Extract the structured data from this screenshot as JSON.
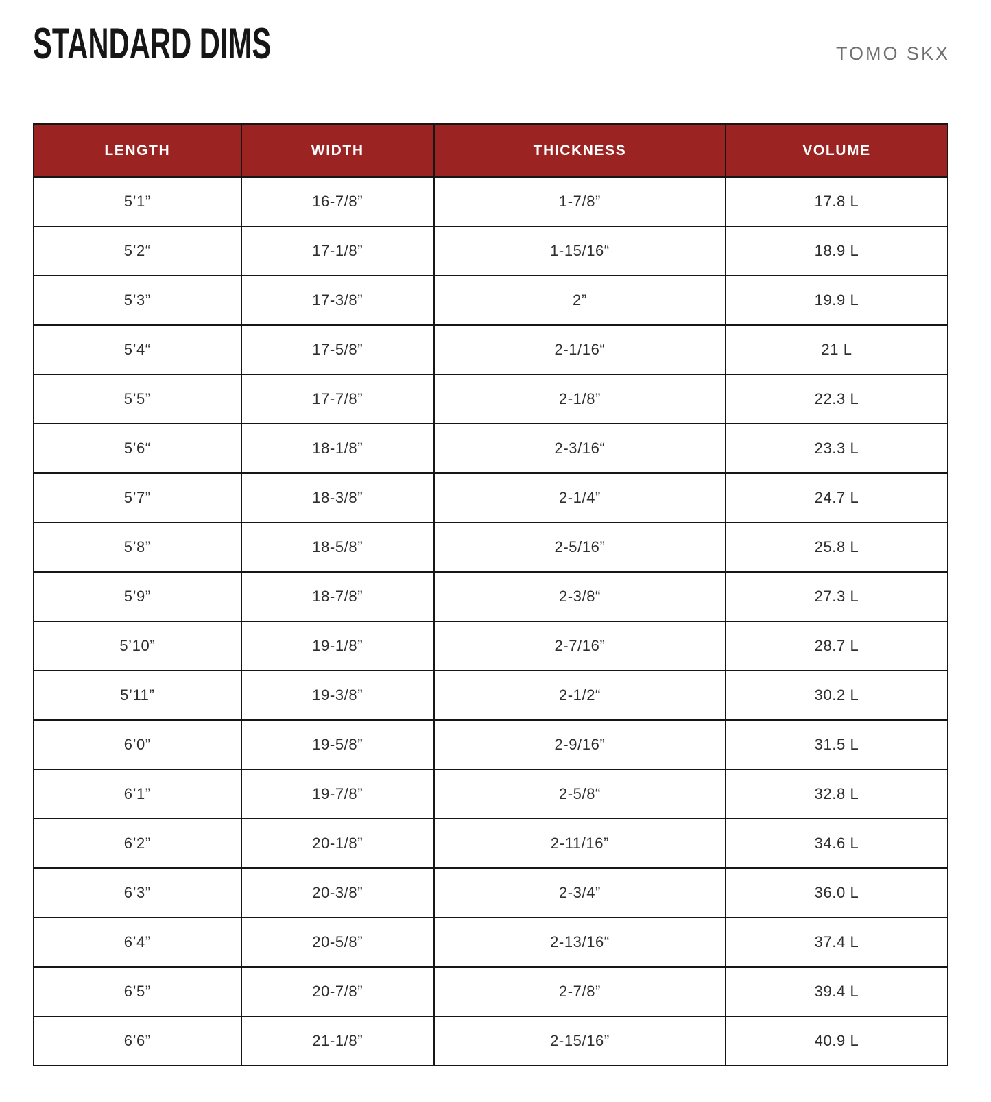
{
  "page": {
    "title": "STANDARD DIMS",
    "brand": "TOMO SKX"
  },
  "colors": {
    "header_bg": "#9b2423",
    "header_text": "#ffffff",
    "border": "#161616",
    "cell_text": "#2e2e30",
    "title_text": "#161616",
    "brand_text": "#6f6f6f"
  },
  "table": {
    "columns": [
      "LENGTH",
      "WIDTH",
      "THICKNESS",
      "VOLUME"
    ],
    "rows": [
      [
        "5’1”",
        "16-7/8”",
        "1-7/8”",
        "17.8 L"
      ],
      [
        "5’2“",
        "17-1/8”",
        "1-15/16“",
        "18.9 L"
      ],
      [
        "5’3”",
        "17-3/8”",
        "2”",
        "19.9 L"
      ],
      [
        "5’4“",
        "17-5/8”",
        "2-1/16“",
        "21 L"
      ],
      [
        "5’5”",
        "17-7/8”",
        "2-1/8”",
        "22.3 L"
      ],
      [
        "5’6“",
        "18-1/8”",
        "2-3/16“",
        "23.3 L"
      ],
      [
        "5’7”",
        "18-3/8”",
        "2-1/4”",
        "24.7 L"
      ],
      [
        "5’8”",
        "18-5/8”",
        "2-5/16”",
        "25.8 L"
      ],
      [
        "5’9”",
        "18-7/8”",
        "2-3/8“",
        "27.3 L"
      ],
      [
        "5’10”",
        "19-1/8”",
        "2-7/16”",
        "28.7 L"
      ],
      [
        "5’11”",
        "19-3/8”",
        "2-1/2“",
        "30.2 L"
      ],
      [
        "6’0”",
        "19-5/8”",
        "2-9/16”",
        "31.5 L"
      ],
      [
        "6’1”",
        "19-7/8”",
        "2-5/8“",
        "32.8 L"
      ],
      [
        "6’2”",
        "20-1/8”",
        "2-11/16”",
        "34.6 L"
      ],
      [
        "6’3”",
        "20-3/8”",
        "2-3/4”",
        "36.0 L"
      ],
      [
        "6’4”",
        "20-5/8”",
        "2-13/16“",
        "37.4 L"
      ],
      [
        "6’5”",
        "20-7/8”",
        "2-7/8”",
        "39.4 L"
      ],
      [
        "6’6”",
        "21-1/8”",
        "2-15/16”",
        "40.9 L"
      ]
    ],
    "cell_names": [
      "cell-length",
      "cell-width",
      "cell-thickness",
      "cell-volume"
    ]
  }
}
